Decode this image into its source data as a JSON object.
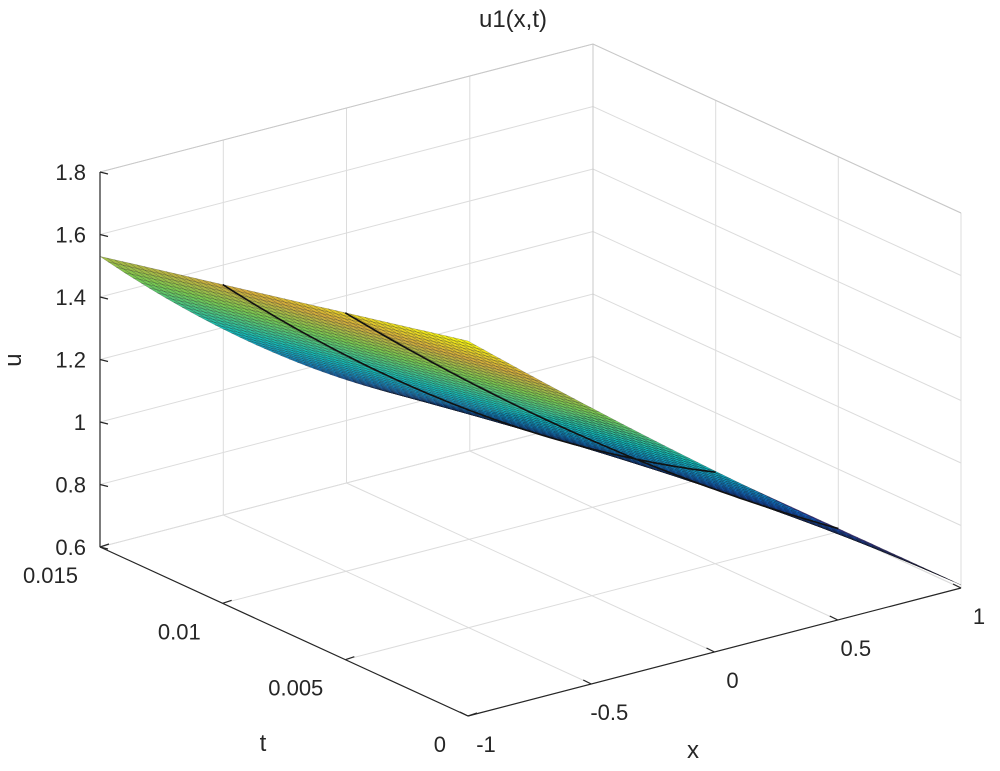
{
  "chart_data": {
    "type": "surface",
    "title": "u1(x,t)",
    "xlabel": "x",
    "ylabel": "t",
    "zlabel": "u",
    "xlim": [
      -1,
      1
    ],
    "tlim": [
      0,
      0.015
    ],
    "zlim": [
      0.6,
      1.8
    ],
    "x_ticks": [
      "-1",
      "-0.5",
      "0",
      "0.5",
      "1"
    ],
    "t_ticks": [
      "0",
      "0.005",
      "0.01",
      "0.015"
    ],
    "z_ticks": [
      "0.6",
      "0.8",
      "1",
      "1.2",
      "1.4",
      "1.6",
      "1.8"
    ],
    "grid": true,
    "colormap": "parula",
    "surface_samples": {
      "x": [
        -1,
        -0.5,
        0,
        0.5,
        1
      ],
      "u_at_t0": [
        1.8,
        1.45,
        1.18,
        0.92,
        0.61
      ],
      "u_at_t0015": [
        1.53,
        1.2,
        0.93,
        0.76,
        0.61
      ]
    },
    "highlight_curves": [
      {
        "t": 0.005
      },
      {
        "t": 0.01
      }
    ]
  }
}
